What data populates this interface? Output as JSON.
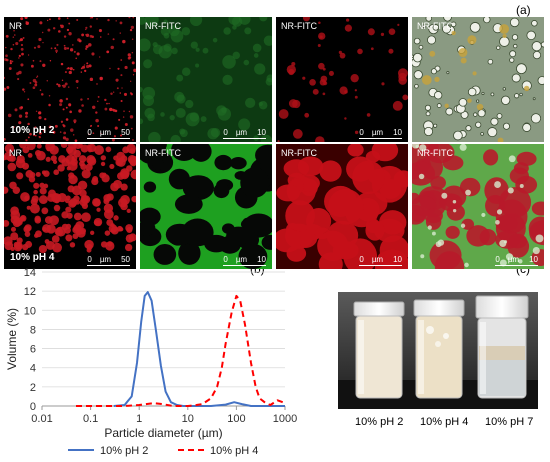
{
  "panels": {
    "a": "(a)",
    "b": "(b)",
    "c": "(c)"
  },
  "micrographs": {
    "row1": {
      "condition": "10% pH 2",
      "tiles": [
        {
          "label": "NR",
          "scale_0": "0",
          "scale_unit": "µm",
          "scale_end": "50"
        },
        {
          "label": "NR-FITC",
          "scale_0": "0",
          "scale_unit": "µm",
          "scale_end": "10"
        },
        {
          "label": "NR-FITC",
          "scale_0": "0",
          "scale_unit": "µm",
          "scale_end": "10"
        },
        {
          "label": "NR-FITC",
          "scale_0": "",
          "scale_unit": "",
          "scale_end": ""
        }
      ]
    },
    "row2": {
      "condition": "10% pH 4",
      "tiles": [
        {
          "label": "NR",
          "scale_0": "0",
          "scale_unit": "µm",
          "scale_end": "50"
        },
        {
          "label": "NR-FITC",
          "scale_0": "0",
          "scale_unit": "µm",
          "scale_end": "10"
        },
        {
          "label": "NR-FITC",
          "scale_0": "0",
          "scale_unit": "µm",
          "scale_end": "10"
        },
        {
          "label": "NR-FITC",
          "scale_0": "0",
          "scale_unit": "µm",
          "scale_end": "10"
        }
      ]
    }
  },
  "chart_data": {
    "type": "line",
    "xlabel": "Particle diameter (µm)",
    "ylabel": "Volume (%)",
    "x_scale": "log",
    "xlim": [
      0.01,
      1000
    ],
    "ylim": [
      0,
      14
    ],
    "x_ticks": [
      "0.01",
      "0.1",
      "1",
      "10",
      "100",
      "1000"
    ],
    "y_ticks": [
      "0",
      "2",
      "4",
      "6",
      "8",
      "10",
      "12",
      "14"
    ],
    "legend_position": "bottom",
    "series": [
      {
        "name": "10% pH 2",
        "color": "#4472c4",
        "style": "solid",
        "x": [
          0.3,
          0.5,
          0.7,
          0.9,
          1.1,
          1.3,
          1.5,
          1.8,
          2.2,
          2.8,
          3.5,
          4.5,
          6,
          8,
          12,
          30,
          60,
          90,
          130,
          200,
          400,
          1000
        ],
        "y": [
          0,
          0.1,
          1.0,
          4.5,
          8.8,
          11.5,
          11.9,
          11.0,
          8.0,
          4.2,
          1.5,
          0.4,
          0.1,
          0,
          0,
          0,
          0.15,
          0.4,
          0.2,
          0,
          0,
          0
        ]
      },
      {
        "name": "10% pH 4",
        "color": "#ff0000",
        "style": "dashed",
        "x": [
          0.05,
          0.5,
          1,
          2,
          3,
          5,
          10,
          15,
          20,
          30,
          40,
          50,
          60,
          80,
          100,
          120,
          150,
          200,
          250,
          300,
          400,
          500,
          700,
          1000
        ],
        "y": [
          0,
          0,
          0.1,
          0.3,
          0.2,
          0,
          0,
          0.1,
          0.2,
          0.8,
          2.0,
          4.0,
          6.5,
          9.8,
          11.5,
          11.0,
          8.5,
          4.5,
          2.0,
          0.8,
          0.3,
          0.1,
          0.6,
          0.3
        ]
      }
    ]
  },
  "photo": {
    "captions": [
      "10% pH 2",
      "10% pH 4",
      "10% pH 7"
    ]
  }
}
